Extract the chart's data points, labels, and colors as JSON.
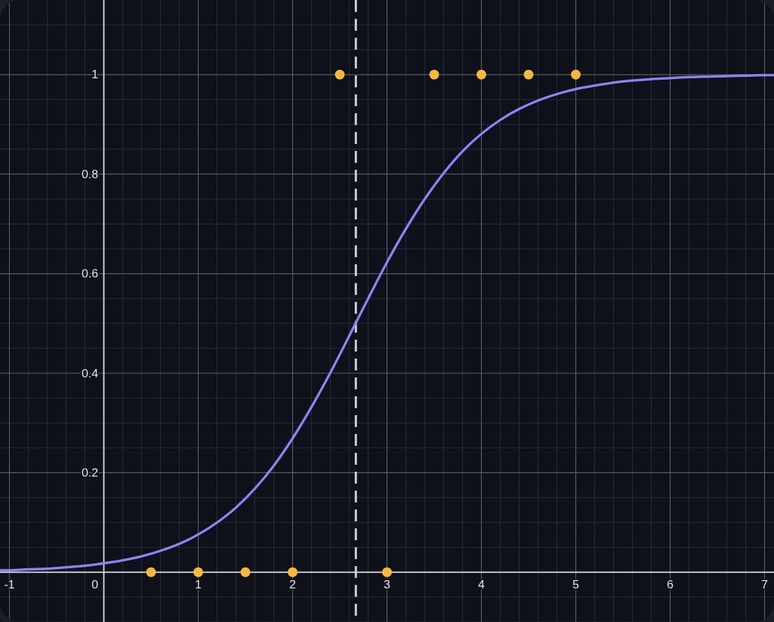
{
  "chart_data": {
    "type": "line",
    "xlim": [
      -1.1,
      7.1
    ],
    "ylim": [
      -0.1,
      1.15
    ],
    "xticks": [
      -1,
      0,
      1,
      2,
      3,
      4,
      5,
      6,
      7
    ],
    "yticks": [
      0.2,
      0.4,
      0.6,
      0.8,
      1
    ],
    "grid": true,
    "series": [
      {
        "color": "#8a85f0",
        "x": [
          -1.1,
          -1,
          -0.8,
          -0.6,
          -0.4,
          -0.2,
          0,
          0.2,
          0.4,
          0.6,
          0.8,
          1,
          1.2,
          1.4,
          1.6,
          1.8,
          2,
          2.2,
          2.4,
          2.6,
          2.8,
          3,
          3.2,
          3.4,
          3.6,
          3.8,
          4,
          4.2,
          4.4,
          4.6,
          4.8,
          5,
          5.2,
          5.4,
          5.6,
          5.8,
          6,
          6.2,
          6.4,
          6.6,
          6.8,
          7,
          7.1
        ],
        "values": [
          0.004,
          0.004,
          0.006,
          0.007,
          0.01,
          0.013,
          0.018,
          0.024,
          0.032,
          0.043,
          0.057,
          0.076,
          0.1,
          0.13,
          0.168,
          0.214,
          0.269,
          0.332,
          0.401,
          0.475,
          0.55,
          0.623,
          0.69,
          0.75,
          0.802,
          0.846,
          0.881,
          0.909,
          0.931,
          0.948,
          0.961,
          0.971,
          0.978,
          0.984,
          0.988,
          0.991,
          0.993,
          0.995,
          0.996,
          0.997,
          0.998,
          0.999,
          0.999
        ]
      },
      {
        "type": "scatter",
        "color": "#f5b841",
        "marker": "circle",
        "x": [
          0.5,
          1,
          1.5,
          2,
          2.5,
          3,
          3.5,
          4,
          4.5,
          5
        ],
        "values": [
          0,
          0,
          0,
          0,
          1,
          0,
          1,
          1,
          1,
          1
        ]
      }
    ],
    "ref_lines": [
      {
        "axis": "x",
        "value": 2.67,
        "color": "#d8d8e0",
        "line_style": "dashed"
      }
    ]
  }
}
